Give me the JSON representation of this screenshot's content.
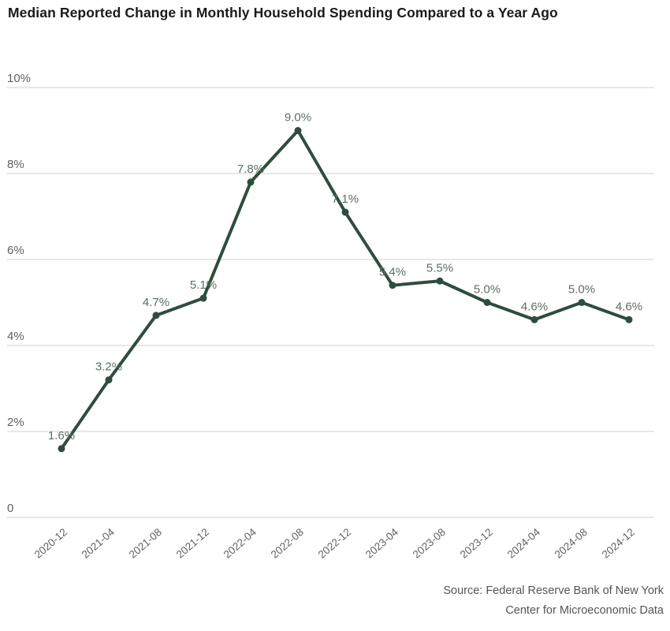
{
  "title": "Median Reported Change in Monthly Household Spending Compared to a Year Ago",
  "chart_data": {
    "type": "line",
    "title": "Median Reported Change in Monthly Household Spending Compared to a Year Ago",
    "categories": [
      "2020-12",
      "2021-04",
      "2021-08",
      "2021-12",
      "2022-04",
      "2022-08",
      "2022-12",
      "2023-04",
      "2023-08",
      "2023-12",
      "2024-04",
      "2024-08",
      "2024-12"
    ],
    "values": [
      1.6,
      3.2,
      4.7,
      5.1,
      7.8,
      9.0,
      7.1,
      5.4,
      5.5,
      5.0,
      4.6,
      5.0,
      4.6
    ],
    "point_labels": [
      "1.6%",
      "3.2%",
      "4.7%",
      "5.1%",
      "7.8%",
      "9.0%",
      "7.1%",
      "5.4%",
      "5.5%",
      "5.0%",
      "4.6%",
      "5.0%",
      "4.6%"
    ],
    "xlabel": "",
    "ylabel": "",
    "ylim": [
      0,
      10
    ],
    "y_ticks": [
      {
        "value": 0,
        "label": "0"
      },
      {
        "value": 2,
        "label": "2%"
      },
      {
        "value": 4,
        "label": "4%"
      },
      {
        "value": 6,
        "label": "6%"
      },
      {
        "value": 8,
        "label": "8%"
      },
      {
        "value": 10,
        "label": "10%"
      }
    ],
    "grid": "horizontal",
    "legend": "none",
    "colors": {
      "line": "#2e4d3d",
      "point": "#2e4d3d",
      "point_label": "#5e6f64",
      "axis_label": "#606060",
      "grid_line": "#dadada"
    }
  },
  "source": {
    "line1": "Source: Federal Reserve Bank of New York",
    "line2": "Center for Microeconomic Data"
  }
}
